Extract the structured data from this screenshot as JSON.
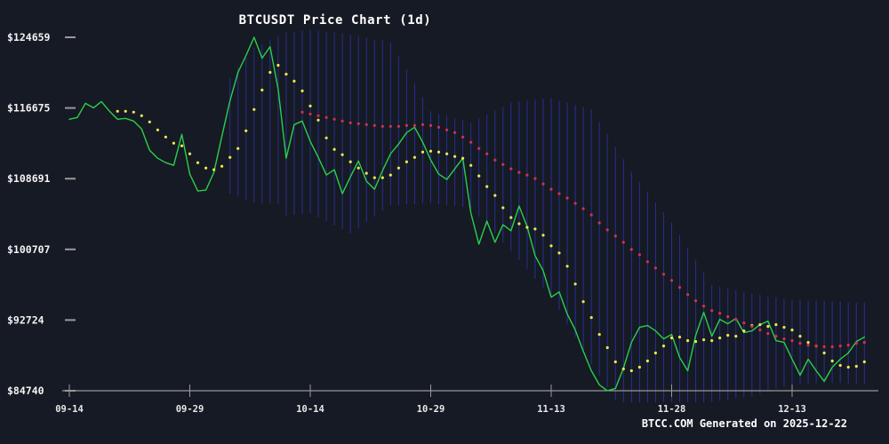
{
  "title": "BTCUSDT Price Chart (1d)",
  "footer": "BTCC.COM Generated on 2025-12-22",
  "colors": {
    "background": "#161a24",
    "price_line": "#2bcf4a",
    "ma7_dots": "#e9e94f",
    "ma30_dots": "#d5304a",
    "range_bars": "#272f92",
    "axis": "#b5b5b5",
    "tick_dash": "#9a9a9a",
    "axis_label": "#e8e8e8",
    "title_text": "#ffffff"
  },
  "chart_data": {
    "type": "line",
    "title": "BTCUSDT Price Chart (1d)",
    "subtitle": "",
    "xlabel": "",
    "ylabel": "",
    "grid": false,
    "legend_position": "none",
    "ylim": [
      84740,
      124659
    ],
    "days_total": 100,
    "x_axis": {
      "tick_labels": [
        "09-14",
        "09-29",
        "10-14",
        "10-29",
        "11-13",
        "11-28",
        "12-13"
      ],
      "tick_days": [
        0,
        15,
        30,
        45,
        60,
        75,
        90
      ]
    },
    "y_axis": {
      "tick_labels": [
        "$124659",
        "$116675",
        "$108691",
        "$100707",
        "$92724",
        "$84740"
      ],
      "tick_values": [
        124659,
        116675,
        108691,
        100707,
        92724,
        84740
      ]
    },
    "series": [
      {
        "name": "close-price",
        "type": "line",
        "color": "#2bcf4a",
        "start_day": 0,
        "values": [
          115400,
          115600,
          117200,
          116700,
          117400,
          116300,
          115400,
          115500,
          115200,
          114300,
          111900,
          111000,
          110500,
          110200,
          113700,
          109200,
          107300,
          107400,
          109400,
          113500,
          117500,
          120700,
          122600,
          124659,
          122300,
          123600,
          118800,
          111000,
          114800,
          115200,
          112900,
          111100,
          109100,
          109700,
          107000,
          108900,
          110700,
          108400,
          107500,
          109600,
          111500,
          112600,
          113900,
          114500,
          112800,
          110800,
          109200,
          108600,
          109800,
          111000,
          104800,
          101300,
          103900,
          101500,
          103500,
          102800,
          105600,
          103300,
          100000,
          98300,
          95300,
          95900,
          93400,
          91600,
          89200,
          87000,
          85400,
          84740,
          85000,
          87300,
          90200,
          91900,
          92100,
          91500,
          90600,
          91100,
          88500,
          87000,
          91000,
          93600,
          90900,
          92800,
          92300,
          92900,
          91300,
          91500,
          92200,
          92600,
          90400,
          90200,
          88300,
          86500,
          88300,
          87000,
          85800,
          87400,
          88300,
          89000,
          90300,
          90800
        ]
      },
      {
        "name": "ma7",
        "type": "dots",
        "color": "#e9e94f",
        "start_day": 6,
        "values": [
          116300,
          116300,
          116200,
          115800,
          115100,
          114200,
          113400,
          112700,
          112400,
          111500,
          110500,
          109900,
          109700,
          110100,
          111100,
          112100,
          114100,
          116500,
          118700,
          120700,
          121500,
          120500,
          119700,
          118600,
          116900,
          115300,
          113300,
          112000,
          111400,
          110600,
          109900,
          109300,
          108800,
          108800,
          109100,
          109900,
          110600,
          111100,
          111700,
          111800,
          111700,
          111500,
          111200,
          111000,
          110200,
          109000,
          107800,
          106800,
          105400,
          104300,
          103600,
          103200,
          103000,
          102300,
          101100,
          100300,
          98800,
          96800,
          94800,
          93000,
          91100,
          89600,
          88000,
          87200,
          87000,
          87400,
          88100,
          89000,
          89800,
          90700,
          90800,
          90400,
          90300,
          90500,
          90400,
          90700,
          91000,
          90900,
          91500,
          92100,
          92200,
          92000,
          92200,
          91900,
          91600,
          90900,
          90200,
          89800,
          89000,
          88100,
          87600,
          87400,
          87500,
          88000
        ]
      },
      {
        "name": "ma30",
        "type": "dots",
        "color": "#d5304a",
        "start_day": 29,
        "values": [
          116200,
          116000,
          115800,
          115600,
          115400,
          115200,
          115000,
          114900,
          114800,
          114700,
          114600,
          114600,
          114600,
          114700,
          114700,
          114800,
          114700,
          114500,
          114200,
          113900,
          113400,
          112800,
          112100,
          111500,
          110800,
          110300,
          109800,
          109400,
          109100,
          108700,
          108100,
          107500,
          107000,
          106500,
          105900,
          105300,
          104600,
          103700,
          102900,
          102200,
          101500,
          100700,
          100100,
          99300,
          98600,
          97900,
          97200,
          96400,
          95600,
          94900,
          94300,
          93800,
          93500,
          93100,
          92800,
          92400,
          92000,
          91600,
          91200,
          90900,
          90600,
          90400,
          90100,
          89900,
          89800,
          89700,
          89700,
          89800,
          89900,
          90100,
          90200
        ]
      },
      {
        "name": "volatility-range",
        "type": "vlines",
        "color": "#272f92",
        "start_day": 20,
        "upper": [
          120000,
          121200,
          122400,
          123500,
          123900,
          124400,
          124800,
          125200,
          125300,
          125400,
          125500,
          125400,
          125300,
          125200,
          125100,
          125000,
          124800,
          124600,
          124400,
          124300,
          124100,
          122500,
          121000,
          119400,
          117900,
          116300,
          116000,
          115800,
          115500,
          115300,
          115000,
          115500,
          115900,
          116400,
          116800,
          117300,
          117400,
          117500,
          117600,
          117700,
          117800,
          117500,
          117300,
          117000,
          116800,
          116500,
          115100,
          113700,
          112300,
          110900,
          109500,
          108300,
          107200,
          106000,
          104900,
          103700,
          102300,
          100900,
          99500,
          98100,
          96700,
          96500,
          96300,
          96100,
          95900,
          95700,
          95600,
          95400,
          95300,
          95100,
          95000,
          95000,
          94900,
          94900,
          94900,
          94800,
          94800,
          94700,
          94700,
          94700
        ],
        "lower": [
          107000,
          106700,
          106300,
          106000,
          105900,
          105900,
          105800,
          104500,
          104600,
          104700,
          104800,
          104300,
          103900,
          103400,
          103000,
          102500,
          103100,
          103800,
          104400,
          105100,
          105700,
          105700,
          105800,
          105800,
          105900,
          105900,
          105800,
          105700,
          105600,
          105500,
          105400,
          104400,
          103400,
          102500,
          101500,
          100500,
          99500,
          98500,
          97400,
          96400,
          95400,
          93900,
          92300,
          90800,
          89200,
          87700,
          86400,
          85100,
          83700,
          82400,
          81100,
          81100,
          81200,
          81200,
          81300,
          81300,
          81700,
          82200,
          82600,
          83100,
          83500,
          83600,
          83700,
          83900,
          84000,
          84100,
          84400,
          84700,
          85000,
          85200,
          85500,
          85500,
          85500,
          85600,
          85600,
          85600,
          85600,
          85500,
          85500,
          85500
        ]
      }
    ]
  }
}
